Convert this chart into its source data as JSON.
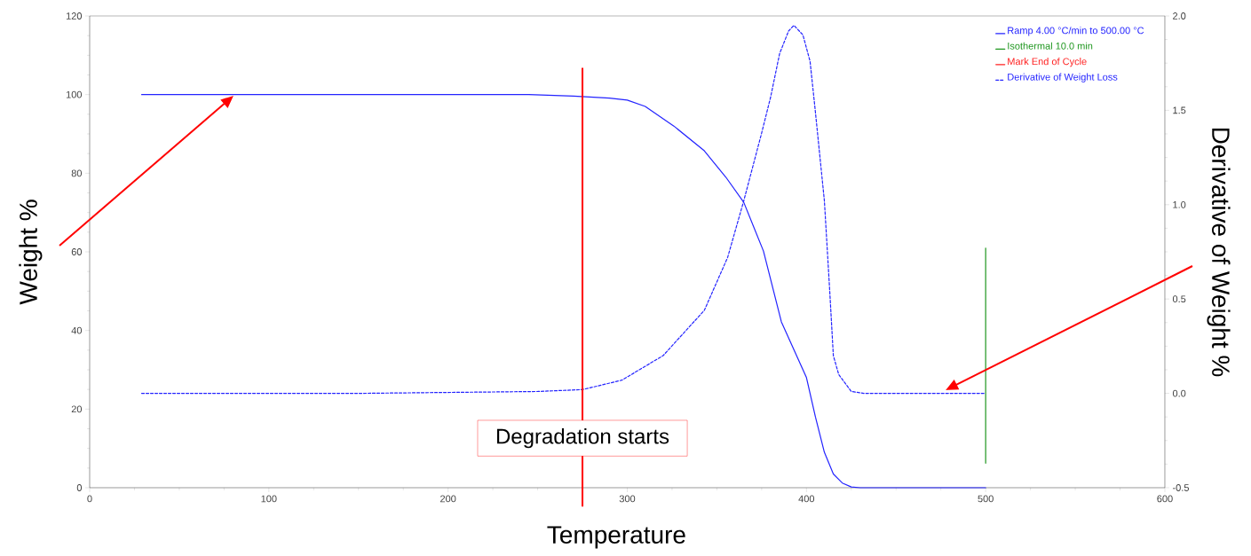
{
  "chart_data": {
    "type": "line",
    "xlabel": "Temperature",
    "ylabel": "Weight %",
    "y2label": "Derivative of Weight %",
    "xlim": [
      0,
      600
    ],
    "xticks": [
      0,
      100,
      200,
      300,
      400,
      500,
      600
    ],
    "ylim": [
      0,
      120
    ],
    "yticks": [
      0,
      20,
      40,
      60,
      80,
      100,
      120
    ],
    "y2lim": [
      -0.5,
      2.0
    ],
    "y2ticks": [
      -0.5,
      {
        "value": 0,
        "label": "0.0"
      },
      0.5,
      {
        "value": 1,
        "label": "1.0"
      },
      1.5,
      {
        "value": 2,
        "label": "2.0"
      }
    ],
    "legend": "top right",
    "marker": "none",
    "series": [
      {
        "name": "Ramp 4.00 °C/min to 500.00 °C",
        "color": "#2323ff",
        "axis": "y",
        "line_style": "solid",
        "x": [
          29,
          245,
          270,
          290,
          300,
          310,
          326,
          343,
          355,
          365,
          376,
          386,
          400,
          405,
          410,
          415,
          420,
          425,
          430,
          500
        ],
        "values": [
          100,
          100,
          99.6,
          99.1,
          98.6,
          97.0,
          92.0,
          85.7,
          79.0,
          72.6,
          60.2,
          42.2,
          28.0,
          18.0,
          9.0,
          3.5,
          1.2,
          0.2,
          0,
          0
        ]
      },
      {
        "name": "Isothermal 10.0 min",
        "color": "#1e961e",
        "axis": "y2",
        "line_style": "solid",
        "x": [
          500,
          500
        ],
        "values": [
          0.77,
          -0.37
        ]
      },
      {
        "name": "Mark End of Cycle",
        "color": "#ff2020",
        "axis": "y",
        "line_style": "solid"
      },
      {
        "name": "Derivative of Weight Loss",
        "color": "#2323ff",
        "axis": "y2",
        "line_style": "dashed",
        "x": [
          29,
          150,
          250,
          275,
          297,
          320,
          343,
          356,
          365,
          375,
          380,
          385,
          390,
          393,
          398,
          402,
          405,
          410,
          413,
          415,
          418,
          425,
          432,
          500
        ],
        "values": [
          0,
          0,
          0.01,
          0.02,
          0.07,
          0.2,
          0.44,
          0.72,
          1.02,
          1.38,
          1.57,
          1.8,
          1.92,
          1.95,
          1.9,
          1.76,
          1.49,
          1.02,
          0.54,
          0.2,
          0.1,
          0.01,
          0,
          0
        ]
      }
    ],
    "ref_lines": [
      {
        "axis": "x",
        "value": 275,
        "label": "Degradation starts",
        "color": "#ff0000"
      }
    ]
  }
}
